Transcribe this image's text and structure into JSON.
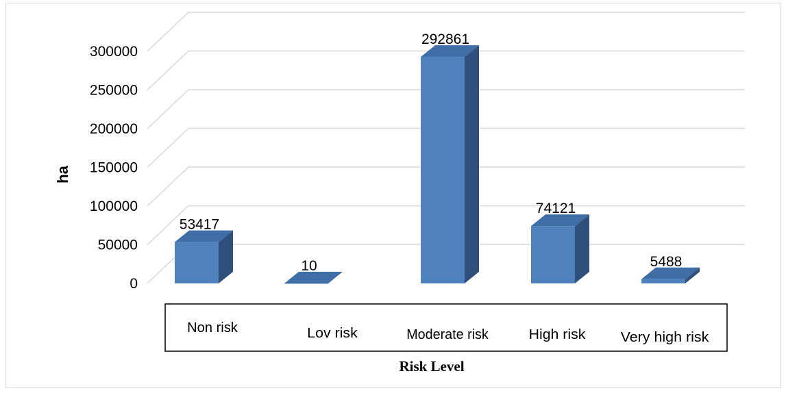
{
  "chart_data": {
    "type": "bar",
    "style": "3d-column",
    "categories": [
      "Non risk",
      "Lov risk",
      "Moderate risk",
      "High risk",
      "Very high risk"
    ],
    "values": [
      53417,
      10,
      292861,
      74121,
      5488
    ],
    "data_labels": [
      "53417",
      "10",
      "292861",
      "74121",
      "5488"
    ],
    "xlabel": "Risk Level",
    "ylabel": "ha",
    "ylim": [
      0,
      300000
    ],
    "yticks": [
      0,
      50000,
      100000,
      150000,
      200000,
      250000,
      300000
    ],
    "ytick_labels": [
      "0",
      "50000",
      "100000",
      "150000",
      "200000",
      "250000",
      "300000"
    ],
    "grid": true,
    "legend": "none",
    "colors": {
      "bar_front": "#4f81bd",
      "bar_top": "#3f6da6",
      "bar_side": "#2f4f7c",
      "gridline": "#d9d9d9",
      "frame": "#d9d9d9"
    }
  }
}
